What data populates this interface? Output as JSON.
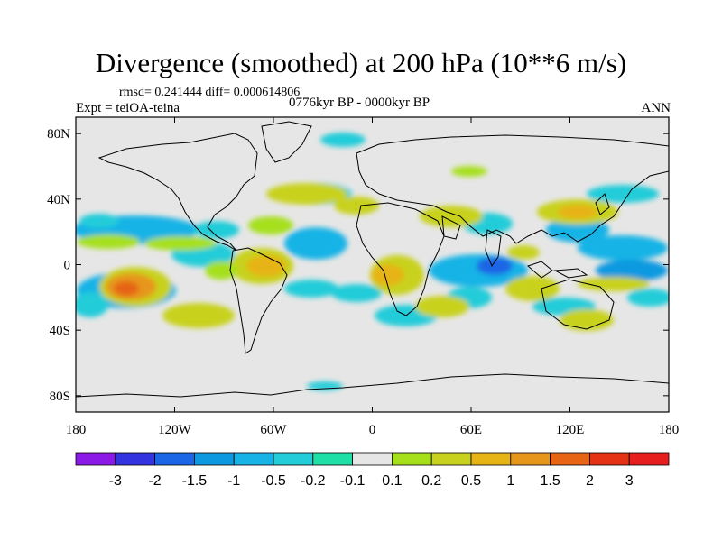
{
  "title": "Divergence (smoothed) at 200 hPa (10**6 m/s)",
  "stats": "rmsd= 0.241444  diff= 0.000614806",
  "experiment": "Expt = teiOA-teina",
  "period": "0776kyr BP - 0000kyr BP",
  "season": "ANN",
  "map": {
    "projection": "cylindrical equidistant",
    "lon_range": [
      -180,
      180
    ],
    "lat_range": [
      -90,
      90
    ],
    "lat_ticks": [
      "80N",
      "40N",
      "0",
      "40S",
      "80S"
    ],
    "lon_ticks": [
      "180",
      "120W",
      "60W",
      "0",
      "60E",
      "120E",
      "180"
    ],
    "background_color": "#e6e6e6"
  },
  "colorbar": {
    "labels": [
      "-3",
      "-2",
      "-1.5",
      "-1",
      "-0.5",
      "-0.2",
      "-0.1",
      "0.1",
      "0.2",
      "0.5",
      "1",
      "1.5",
      "2",
      "3"
    ],
    "colors": [
      "#8c1ae6",
      "#3333e0",
      "#1a66e6",
      "#0d99e0",
      "#17b3e6",
      "#22ccd9",
      "#1ee0a6",
      "#e6e6e6",
      "#a6e01a",
      "#c8d21e",
      "#e6b414",
      "#e6961a",
      "#e66414",
      "#e63214",
      "#e61e1e"
    ]
  },
  "fields": [
    {
      "name": "cp_positive_max",
      "lon": -150,
      "lat": -10,
      "level": "2"
    },
    {
      "name": "c_pacific_negative",
      "lon": -150,
      "lat": 10,
      "level": "-1"
    },
    {
      "name": "s_pacific_negative",
      "lon": -150,
      "lat": -35,
      "level": "-0.5"
    },
    {
      "name": "s_america_positive",
      "lon": -60,
      "lat": 0,
      "level": "1"
    },
    {
      "name": "c_atlantic_negative",
      "lon": -30,
      "lat": 5,
      "level": "-0.5"
    },
    {
      "name": "africa_positive",
      "lon": 20,
      "lat": -5,
      "level": "1"
    },
    {
      "name": "indian_ocean_negative",
      "lon": 70,
      "lat": -2,
      "level": "-1.5"
    },
    {
      "name": "maritime_positive",
      "lon": 110,
      "lat": -5,
      "level": "1"
    },
    {
      "name": "w_pacific_negative",
      "lon": 140,
      "lat": 10,
      "level": "-1"
    },
    {
      "name": "nw_pacific_positive",
      "lon": 135,
      "lat": 20,
      "level": "0.5"
    }
  ]
}
